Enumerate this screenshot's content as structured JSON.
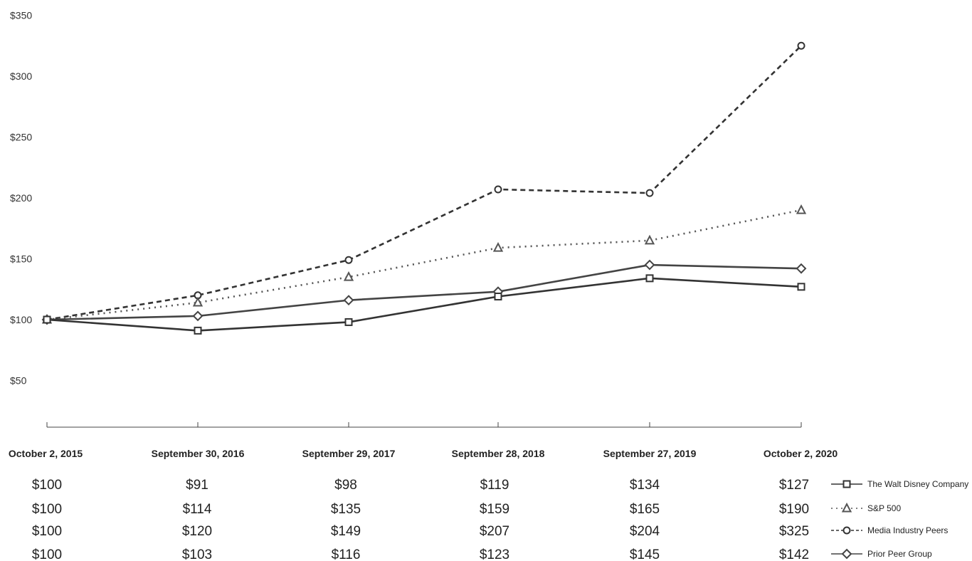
{
  "chart_data": {
    "type": "line",
    "title": "",
    "xlabel": "",
    "ylabel": "",
    "categories": [
      "October 2, 2015",
      "September 30, 2016",
      "September 29, 2017",
      "September 28, 2018",
      "September 27, 2019",
      "October 2, 2020"
    ],
    "yticks": [
      "$50",
      "$100",
      "$150",
      "$200",
      "$250",
      "$300",
      "$350"
    ],
    "ylim": [
      0,
      350
    ],
    "grid": false,
    "legend_position": "right of data table",
    "series": [
      {
        "name": "The Walt Disney Company",
        "values": [
          100,
          91,
          98,
          119,
          134,
          127
        ],
        "labels": [
          "$100",
          "$91",
          "$98",
          "$119",
          "$134",
          "$127"
        ],
        "marker": "square",
        "line_style": "solid",
        "color": "#333333"
      },
      {
        "name": "S&P 500",
        "values": [
          100,
          114,
          135,
          159,
          165,
          190
        ],
        "labels": [
          "$100",
          "$114",
          "$135",
          "$159",
          "$165",
          "$190"
        ],
        "marker": "triangle",
        "line_style": "dotted",
        "color": "#555555"
      },
      {
        "name": "Media Industry Peers",
        "values": [
          100,
          120,
          149,
          207,
          204,
          325
        ],
        "labels": [
          "$100",
          "$120",
          "$149",
          "$207",
          "$204",
          "$325"
        ],
        "marker": "circle",
        "line_style": "dashed",
        "color": "#333333"
      },
      {
        "name": "Prior Peer Group",
        "values": [
          100,
          103,
          116,
          123,
          145,
          142
        ],
        "labels": [
          "$100",
          "$103",
          "$116",
          "$123",
          "$145",
          "$142"
        ],
        "marker": "diamond",
        "line_style": "solid",
        "color": "#444444"
      }
    ]
  }
}
